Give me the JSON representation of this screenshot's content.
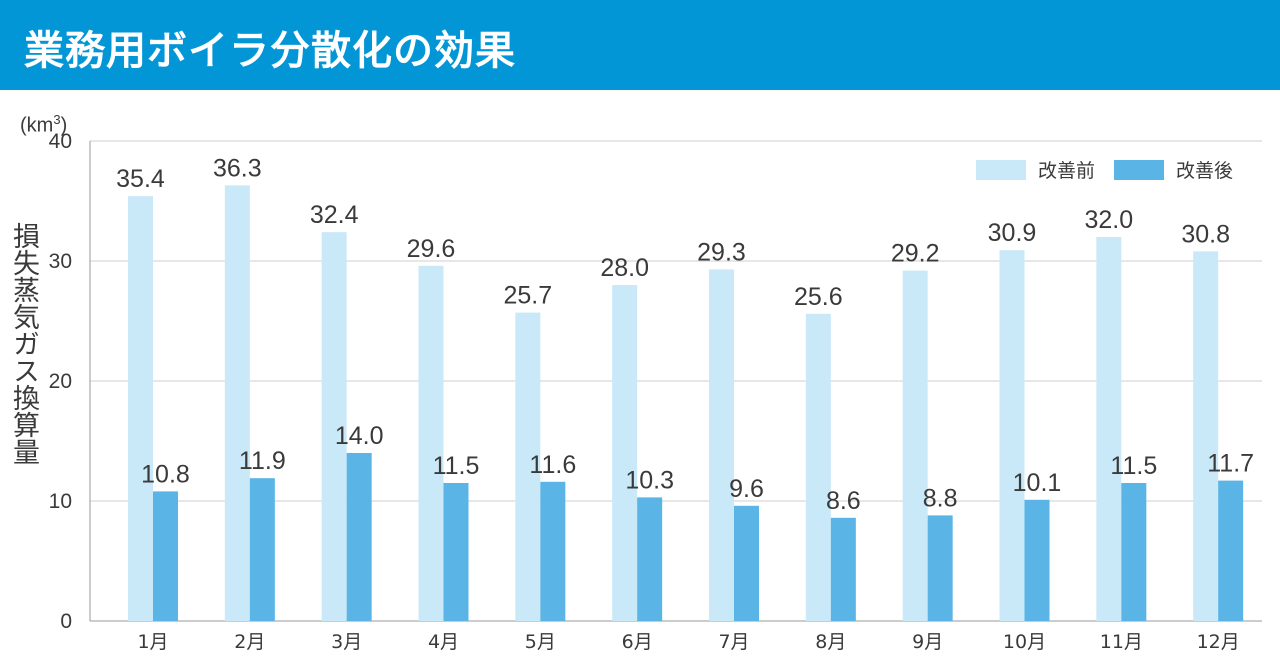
{
  "header": {
    "title": "業務用ボイラ分散化の効果"
  },
  "chart_data": {
    "type": "bar",
    "title": "業務用ボイラ分散化の効果",
    "unit": "(km",
    "unit_sup": "3",
    "unit_close": ")",
    "ylabel": "損失蒸気ガス換算量",
    "xlabel": "",
    "ylim": [
      0,
      40
    ],
    "yticks": [
      0,
      10,
      20,
      30,
      40
    ],
    "grid": true,
    "legend_position": "top-right",
    "categories": [
      "1月",
      "2月",
      "3月",
      "4月",
      "5月",
      "6月",
      "7月",
      "8月",
      "9月",
      "10月",
      "11月",
      "12月"
    ],
    "series": [
      {
        "name": "改善前",
        "color": "#c9e8f8",
        "values": [
          35.4,
          36.3,
          32.4,
          29.6,
          25.7,
          28.0,
          29.3,
          25.6,
          29.2,
          30.9,
          32.0,
          30.8
        ]
      },
      {
        "name": "改善後",
        "color": "#5ab4e5",
        "values": [
          10.8,
          11.9,
          14.0,
          11.5,
          11.6,
          10.3,
          9.6,
          8.6,
          8.8,
          10.1,
          11.5,
          11.7
        ]
      }
    ]
  }
}
